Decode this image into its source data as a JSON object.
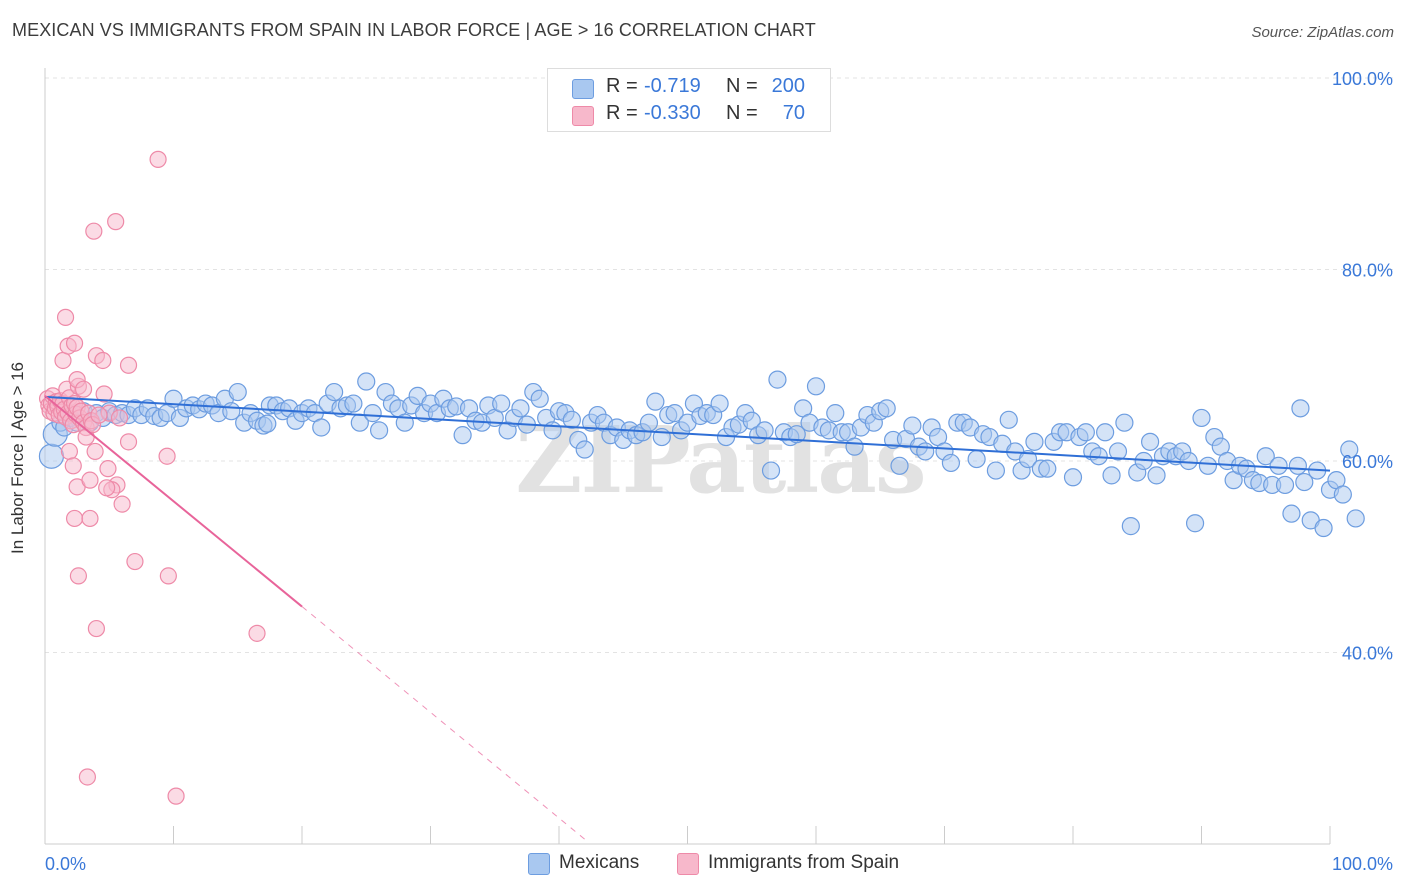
{
  "title": "MEXICAN VS IMMIGRANTS FROM SPAIN IN LABOR FORCE | AGE > 16 CORRELATION CHART",
  "source": "Source: ZipAtlas.com",
  "watermark": "ZIPatlas",
  "colors": {
    "blue_fill": "#a9c8f0",
    "blue_stroke": "#6d9de0",
    "blue_line": "#2f6fd6",
    "pink_fill": "#f7b8cb",
    "pink_stroke": "#ee8aa8",
    "pink_line": "#e8649a",
    "axis_text": "#3a78d8",
    "grid": "#e3e3e3"
  },
  "legend": {
    "r_label": "R =",
    "n_label": "N =",
    "rows": [
      {
        "r": "-0.719",
        "n": "200"
      },
      {
        "r": "-0.330",
        "n": "70"
      }
    ]
  },
  "bottom_legend": [
    "Mexicans",
    "Immigrants from Spain"
  ],
  "chart_data": {
    "type": "scatter",
    "title": "MEXICAN VS IMMIGRANTS FROM SPAIN IN LABOR FORCE | AGE > 16 CORRELATION CHART",
    "xlabel": "",
    "ylabel": "In Labor Force | Age > 16",
    "xlim": [
      0,
      100
    ],
    "ylim": [
      20,
      104
    ],
    "x_tick_labels": [
      "0.0%",
      "100.0%"
    ],
    "y_ticks": [
      40,
      60,
      80,
      100
    ],
    "y_tick_labels": [
      "40.0%",
      "60.0%",
      "80.0%",
      "100.0%"
    ],
    "grid": true,
    "legend_position": "top-center",
    "series": [
      {
        "name": "Mexicans",
        "r": -0.719,
        "n": 200,
        "trend": {
          "x": [
            0,
            100
          ],
          "y": [
            66.7,
            59.0
          ]
        },
        "points": [
          [
            0.5,
            60.5
          ],
          [
            0.8,
            62.8
          ],
          [
            1.2,
            64.0
          ],
          [
            1.5,
            63.5
          ],
          [
            2.0,
            64.5
          ],
          [
            2.5,
            64.0
          ],
          [
            3.0,
            65.2
          ],
          [
            3.5,
            64.0
          ],
          [
            4.0,
            65.0
          ],
          [
            4.5,
            64.5
          ],
          [
            5.0,
            65.2
          ],
          [
            5.5,
            64.8
          ],
          [
            6.0,
            65.0
          ],
          [
            6.5,
            64.8
          ],
          [
            7.0,
            65.5
          ],
          [
            7.5,
            64.8
          ],
          [
            8.0,
            65.5
          ],
          [
            8.5,
            64.7
          ],
          [
            9.0,
            64.5
          ],
          [
            9.5,
            65.0
          ],
          [
            10.0,
            66.5
          ],
          [
            10.5,
            64.5
          ],
          [
            11.0,
            65.5
          ],
          [
            11.5,
            65.8
          ],
          [
            12.0,
            65.4
          ],
          [
            12.5,
            66.0
          ],
          [
            13.0,
            65.8
          ],
          [
            13.5,
            65.0
          ],
          [
            14.0,
            66.5
          ],
          [
            14.5,
            65.2
          ],
          [
            15.0,
            67.2
          ],
          [
            15.5,
            64.0
          ],
          [
            16.0,
            65.0
          ],
          [
            16.5,
            64.2
          ],
          [
            17.0,
            63.7
          ],
          [
            17.5,
            65.8
          ],
          [
            18.0,
            65.8
          ],
          [
            18.5,
            65.2
          ],
          [
            19.0,
            65.5
          ],
          [
            19.5,
            64.2
          ],
          [
            20.0,
            65.0
          ],
          [
            20.5,
            65.5
          ],
          [
            21.0,
            65.0
          ],
          [
            21.5,
            63.5
          ],
          [
            22.0,
            66.0
          ],
          [
            22.5,
            67.2
          ],
          [
            23.0,
            65.5
          ],
          [
            23.5,
            65.8
          ],
          [
            24.0,
            66.0
          ],
          [
            24.5,
            64.0
          ],
          [
            25.0,
            68.3
          ],
          [
            25.5,
            65.0
          ],
          [
            26.0,
            63.2
          ],
          [
            26.5,
            67.2
          ],
          [
            27.0,
            66.0
          ],
          [
            27.5,
            65.5
          ],
          [
            28.0,
            64.0
          ],
          [
            28.5,
            65.8
          ],
          [
            29.0,
            66.8
          ],
          [
            29.5,
            65.0
          ],
          [
            30.0,
            66.0
          ],
          [
            30.5,
            65.0
          ],
          [
            31.0,
            66.5
          ],
          [
            31.5,
            65.5
          ],
          [
            32.0,
            65.7
          ],
          [
            32.5,
            62.7
          ],
          [
            33.0,
            65.5
          ],
          [
            33.5,
            64.2
          ],
          [
            34.0,
            64.0
          ],
          [
            34.5,
            65.8
          ],
          [
            35.0,
            64.5
          ],
          [
            35.5,
            66.0
          ],
          [
            36.0,
            63.2
          ],
          [
            36.5,
            64.5
          ],
          [
            37.0,
            65.5
          ],
          [
            37.5,
            63.8
          ],
          [
            38.0,
            67.2
          ],
          [
            38.5,
            66.5
          ],
          [
            39.0,
            64.5
          ],
          [
            39.5,
            63.2
          ],
          [
            40.0,
            65.2
          ],
          [
            40.5,
            65.0
          ],
          [
            41.0,
            64.3
          ],
          [
            41.5,
            62.2
          ],
          [
            42.0,
            61.2
          ],
          [
            42.5,
            64.0
          ],
          [
            43.0,
            64.8
          ],
          [
            43.5,
            64.0
          ],
          [
            44.0,
            62.7
          ],
          [
            44.5,
            63.5
          ],
          [
            45.0,
            62.2
          ],
          [
            45.5,
            63.2
          ],
          [
            46.0,
            62.7
          ],
          [
            46.5,
            63.0
          ],
          [
            47.0,
            64.0
          ],
          [
            47.5,
            66.2
          ],
          [
            48.0,
            62.5
          ],
          [
            48.5,
            64.8
          ],
          [
            49.0,
            65.0
          ],
          [
            49.5,
            63.2
          ],
          [
            50.0,
            64.0
          ],
          [
            50.5,
            66.0
          ],
          [
            51.0,
            64.7
          ],
          [
            51.5,
            65.0
          ],
          [
            52.0,
            64.8
          ],
          [
            52.5,
            66.0
          ],
          [
            53.0,
            62.5
          ],
          [
            53.5,
            63.5
          ],
          [
            54.0,
            63.8
          ],
          [
            54.5,
            65.0
          ],
          [
            55.0,
            64.2
          ],
          [
            55.5,
            62.7
          ],
          [
            56.0,
            63.2
          ],
          [
            56.5,
            59.0
          ],
          [
            57.0,
            68.5
          ],
          [
            57.5,
            63.0
          ],
          [
            58.0,
            62.5
          ],
          [
            58.5,
            62.8
          ],
          [
            59.0,
            65.5
          ],
          [
            59.5,
            64.0
          ],
          [
            60.0,
            67.8
          ],
          [
            60.5,
            63.5
          ],
          [
            61.0,
            63.2
          ],
          [
            61.5,
            65.0
          ],
          [
            62.0,
            63.0
          ],
          [
            62.5,
            63.0
          ],
          [
            63.0,
            61.5
          ],
          [
            63.5,
            63.5
          ],
          [
            64.0,
            64.8
          ],
          [
            64.5,
            64.0
          ],
          [
            65.0,
            65.2
          ],
          [
            65.5,
            65.5
          ],
          [
            66.0,
            62.2
          ],
          [
            66.5,
            59.5
          ],
          [
            67.0,
            62.3
          ],
          [
            67.5,
            63.7
          ],
          [
            68.0,
            61.5
          ],
          [
            68.5,
            61.0
          ],
          [
            69.0,
            63.5
          ],
          [
            69.5,
            62.5
          ],
          [
            70.0,
            61.0
          ],
          [
            70.5,
            59.8
          ],
          [
            71.0,
            64.0
          ],
          [
            71.5,
            64.0
          ],
          [
            72.0,
            63.5
          ],
          [
            72.5,
            60.2
          ],
          [
            73.0,
            62.8
          ],
          [
            73.5,
            62.5
          ],
          [
            74.0,
            59.0
          ],
          [
            74.5,
            61.8
          ],
          [
            75.0,
            64.3
          ],
          [
            75.5,
            61.0
          ],
          [
            76.0,
            59.0
          ],
          [
            76.5,
            60.2
          ],
          [
            77.0,
            62.0
          ],
          [
            77.5,
            59.2
          ],
          [
            78.0,
            59.2
          ],
          [
            78.5,
            62.0
          ],
          [
            79.0,
            63.0
          ],
          [
            79.5,
            63.0
          ],
          [
            80.0,
            58.3
          ],
          [
            80.5,
            62.5
          ],
          [
            81.0,
            63.0
          ],
          [
            81.5,
            61.0
          ],
          [
            82.0,
            60.5
          ],
          [
            82.5,
            63.0
          ],
          [
            83.0,
            58.5
          ],
          [
            83.5,
            61.0
          ],
          [
            84.0,
            64.0
          ],
          [
            84.5,
            53.2
          ],
          [
            85.0,
            58.8
          ],
          [
            85.5,
            60.0
          ],
          [
            86.0,
            62.0
          ],
          [
            86.5,
            58.5
          ],
          [
            87.0,
            60.5
          ],
          [
            87.5,
            61.0
          ],
          [
            88.0,
            60.5
          ],
          [
            88.5,
            61.0
          ],
          [
            89.0,
            60.0
          ],
          [
            89.5,
            53.5
          ],
          [
            90.0,
            64.5
          ],
          [
            90.5,
            59.5
          ],
          [
            91.0,
            62.5
          ],
          [
            91.5,
            61.5
          ],
          [
            92.0,
            60.0
          ],
          [
            92.5,
            58.0
          ],
          [
            93.0,
            59.5
          ],
          [
            93.5,
            59.2
          ],
          [
            94.0,
            58.0
          ],
          [
            94.5,
            57.7
          ],
          [
            95.0,
            60.5
          ],
          [
            95.5,
            57.5
          ],
          [
            96.0,
            59.5
          ],
          [
            96.5,
            57.5
          ],
          [
            97.0,
            54.5
          ],
          [
            97.5,
            59.5
          ],
          [
            98.0,
            57.8
          ],
          [
            98.5,
            53.8
          ],
          [
            99.0,
            59.0
          ],
          [
            99.5,
            53.0
          ],
          [
            100.0,
            57.0
          ],
          [
            100.5,
            58.0
          ],
          [
            101.0,
            56.5
          ],
          [
            101.5,
            61.2
          ],
          [
            102.0,
            54.0
          ],
          [
            97.7,
            65.5
          ],
          [
            17.3,
            63.9
          ]
        ]
      },
      {
        "name": "Immigrants from Spain",
        "r": -0.33,
        "n": 70,
        "trend": {
          "x": [
            0,
            20
          ],
          "y": [
            66.8,
            44.8
          ]
        },
        "trend_dashed_extension": {
          "x": [
            20,
            42
          ],
          "y": [
            44.8,
            20.5
          ]
        },
        "points": [
          [
            0.2,
            66.5
          ],
          [
            0.3,
            65.8
          ],
          [
            0.4,
            65.2
          ],
          [
            0.5,
            66.0
          ],
          [
            0.6,
            66.8
          ],
          [
            0.7,
            65.0
          ],
          [
            0.8,
            65.5
          ],
          [
            0.9,
            66.2
          ],
          [
            1.0,
            65.7
          ],
          [
            1.1,
            64.8
          ],
          [
            1.2,
            66.3
          ],
          [
            1.3,
            65.1
          ],
          [
            1.4,
            66.0
          ],
          [
            1.5,
            65.4
          ],
          [
            1.6,
            64.6
          ],
          [
            1.7,
            67.5
          ],
          [
            1.8,
            65.0
          ],
          [
            1.9,
            66.6
          ],
          [
            2.0,
            64.2
          ],
          [
            2.1,
            65.8
          ],
          [
            2.2,
            63.8
          ],
          [
            2.3,
            66.0
          ],
          [
            2.4,
            64.9
          ],
          [
            2.5,
            65.6
          ],
          [
            2.6,
            67.8
          ],
          [
            2.7,
            64.5
          ],
          [
            2.8,
            65.2
          ],
          [
            3.0,
            64.0
          ],
          [
            3.2,
            63.5
          ],
          [
            3.4,
            65.0
          ],
          [
            3.6,
            64.2
          ],
          [
            1.4,
            70.5
          ],
          [
            1.8,
            72.0
          ],
          [
            2.3,
            72.3
          ],
          [
            1.6,
            75.0
          ],
          [
            2.5,
            68.5
          ],
          [
            3.0,
            67.5
          ],
          [
            1.9,
            61.0
          ],
          [
            2.2,
            59.5
          ],
          [
            2.5,
            57.3
          ],
          [
            2.3,
            54.0
          ],
          [
            2.6,
            48.0
          ],
          [
            3.3,
            27.0
          ],
          [
            3.5,
            58.0
          ],
          [
            3.9,
            61.0
          ],
          [
            3.5,
            54.0
          ],
          [
            4.0,
            42.5
          ],
          [
            3.8,
            84.0
          ],
          [
            5.5,
            85.0
          ],
          [
            4.0,
            71.0
          ],
          [
            4.5,
            70.5
          ],
          [
            4.6,
            67.0
          ],
          [
            5.0,
            65.0
          ],
          [
            4.9,
            59.2
          ],
          [
            5.6,
            57.5
          ],
          [
            6.0,
            55.5
          ],
          [
            6.5,
            62.0
          ],
          [
            6.5,
            70.0
          ],
          [
            7.0,
            49.5
          ],
          [
            8.8,
            91.5
          ],
          [
            9.5,
            60.5
          ],
          [
            9.6,
            48.0
          ],
          [
            10.2,
            25.0
          ],
          [
            16.5,
            42.0
          ],
          [
            5.2,
            57.0
          ],
          [
            4.8,
            57.2
          ],
          [
            3.2,
            62.5
          ],
          [
            3.7,
            63.8
          ],
          [
            4.2,
            64.8
          ],
          [
            5.8,
            64.5
          ]
        ]
      }
    ]
  }
}
